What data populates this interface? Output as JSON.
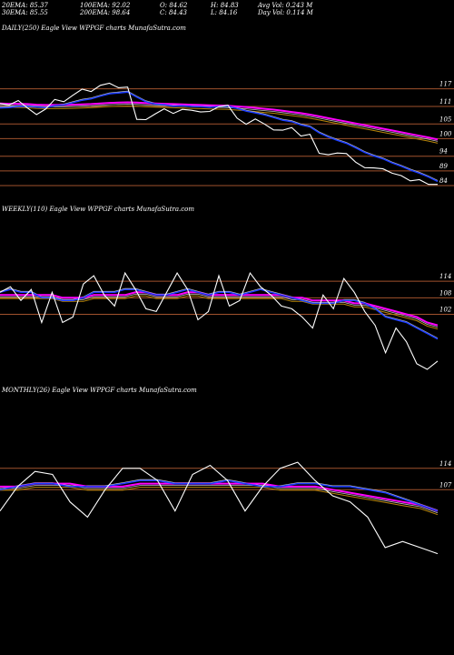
{
  "header": {
    "ema20": "20EMA: 85.37",
    "ema30": "30EMA: 85.55",
    "ema100": "100EMA: 92.02",
    "ema200": "200EMA: 98.64",
    "open": "O: 84.62",
    "close": "C: 84.43",
    "high": "H: 84.83",
    "low": "L: 84.16",
    "avgvol": "Avg Vol: 0.243  M",
    "dayvol": "Day Vol: 0.114  M"
  },
  "colors": {
    "price": "#ffffff",
    "ema_fast": "#1a3cff",
    "ema_slow": "#ff00ff",
    "band": "#c0c0c0",
    "ma_brown": "#b8860b",
    "level": "#a0522d"
  },
  "chart_data": [
    {
      "type": "line",
      "title": "DAILY(250) Eagle  View  WPPGF charts MunafaSutra.com",
      "ticks": [
        117,
        111,
        105,
        100,
        94,
        89,
        84
      ],
      "ylim": [
        81.5,
        120
      ],
      "series": [
        {
          "key": "price",
          "values": [
            112.0,
            111.5,
            113.0,
            110.5,
            108.2,
            110.1,
            113.4,
            112.6,
            114.8,
            116.9,
            116.1,
            118.2,
            118.9,
            117.4,
            117.6,
            106.6,
            106.5,
            108.4,
            110.2,
            108.6,
            110.0,
            109.7,
            109.1,
            109.3,
            110.9,
            111.4,
            107.0,
            104.9,
            106.7,
            105.0,
            103.0,
            102.9,
            103.8,
            100.9,
            101.5,
            95.0,
            94.5,
            95.1,
            94.9,
            92.0,
            90.1,
            90.0,
            89.7,
            88.2,
            87.4,
            85.6,
            86.0,
            84.4,
            84.4
          ]
        },
        {
          "key": "ema_fast",
          "values": [
            110.5,
            110.6,
            111.0,
            111.0,
            110.8,
            110.6,
            111.2,
            111.5,
            112.3,
            113.1,
            113.6,
            114.5,
            115.3,
            115.6,
            115.9,
            114.2,
            112.6,
            111.8,
            111.6,
            111.1,
            111.2,
            111.0,
            110.9,
            110.7,
            111.0,
            111.1,
            110.3,
            109.4,
            108.8,
            108.1,
            107.2,
            106.3,
            105.8,
            104.7,
            104.0,
            102.0,
            100.6,
            99.4,
            98.4,
            96.9,
            95.3,
            94.1,
            93.1,
            91.7,
            90.6,
            89.3,
            88.2,
            86.9,
            85.4
          ]
        },
        {
          "key": "ema_slow",
          "values": [
            112.0,
            111.9,
            111.9,
            111.8,
            111.6,
            111.5,
            111.5,
            111.5,
            111.6,
            111.7,
            111.8,
            112.0,
            112.2,
            112.3,
            112.4,
            112.3,
            112.1,
            112.0,
            111.9,
            111.8,
            111.7,
            111.6,
            111.5,
            111.4,
            111.3,
            111.2,
            111.0,
            110.8,
            110.5,
            110.2,
            109.9,
            109.5,
            109.1,
            108.7,
            108.2,
            107.6,
            107.0,
            106.4,
            105.8,
            105.2,
            104.6,
            104.0,
            103.4,
            102.8,
            102.2,
            101.6,
            101.0,
            100.4,
            99.7
          ]
        }
      ]
    },
    {
      "type": "line",
      "title": "WEEKLY(110) Eagle  View  WPPGF charts MunafaSutra.com",
      "ticks": [
        114,
        108,
        102
      ],
      "ylim": [
        80,
        121
      ],
      "series": [
        {
          "key": "price",
          "values": [
            110,
            112,
            107,
            111,
            99,
            110,
            99,
            101,
            113,
            116,
            109,
            105,
            117,
            111,
            104,
            103,
            110,
            117,
            111,
            100,
            103,
            116,
            105,
            107,
            117,
            112,
            109,
            105,
            104,
            101,
            97,
            109,
            104,
            115,
            110,
            103,
            98,
            88,
            97,
            92,
            84,
            82,
            85
          ]
        },
        {
          "key": "ema_fast",
          "values": [
            110,
            111,
            110,
            110,
            108,
            108,
            107,
            107,
            108,
            110,
            110,
            110,
            111,
            111,
            110,
            109,
            109,
            110,
            111,
            110,
            109,
            110,
            110,
            109,
            110,
            111,
            110,
            109,
            108,
            107,
            106,
            106,
            106,
            107,
            107,
            106,
            104,
            101,
            100,
            99,
            97,
            95,
            93
          ]
        },
        {
          "key": "ema_slow",
          "values": [
            109,
            109,
            109,
            109,
            109,
            109,
            108,
            108,
            108,
            109,
            109,
            109,
            109,
            110,
            110,
            109,
            109,
            109,
            110,
            110,
            109,
            109,
            109,
            109,
            109,
            109,
            109,
            109,
            108,
            108,
            107,
            107,
            107,
            107,
            106,
            106,
            105,
            104,
            103,
            102,
            101,
            99,
            98
          ]
        }
      ]
    },
    {
      "type": "line",
      "title": "MONTHLY(26) Eagle  View  WPPGF charts MunafaSutra.com",
      "ticks": [
        114,
        107
      ],
      "ylim": [
        85,
        122
      ],
      "series": [
        {
          "key": "price",
          "values": [
            100,
            108,
            113,
            112,
            103,
            98,
            107,
            114,
            114,
            110,
            100,
            112,
            115,
            110,
            100,
            108,
            114,
            116,
            110,
            105,
            103,
            98,
            88,
            90,
            88,
            86
          ]
        },
        {
          "key": "ema_fast",
          "values": [
            107,
            108,
            109,
            109,
            108,
            108,
            108,
            109,
            110,
            110,
            109,
            109,
            109,
            110,
            109,
            108,
            108,
            109,
            109,
            108,
            108,
            107,
            106,
            104,
            102,
            100
          ]
        },
        {
          "key": "ema_slow",
          "values": [
            108,
            108,
            109,
            109,
            109,
            108,
            108,
            108,
            109,
            109,
            109,
            109,
            109,
            109,
            109,
            109,
            108,
            108,
            108,
            107,
            106,
            105,
            104,
            103,
            102,
            100
          ]
        }
      ]
    }
  ]
}
